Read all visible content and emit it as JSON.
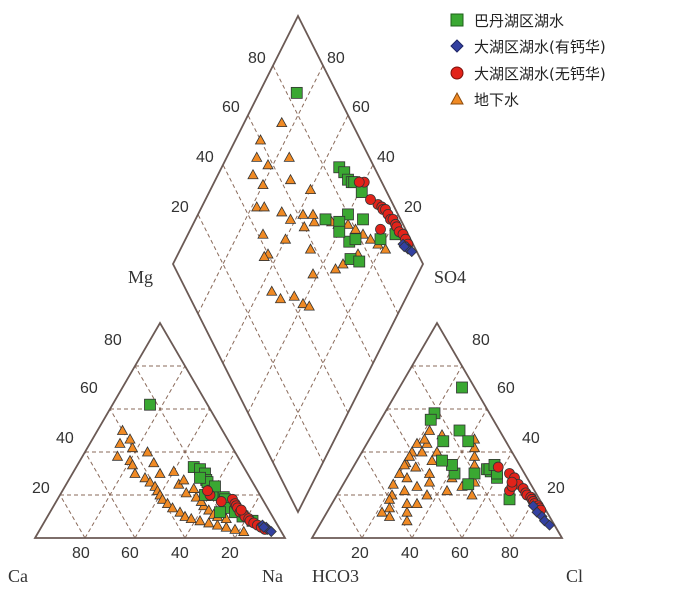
{
  "chart_data": {
    "type": "scatter",
    "title": "",
    "diagram": "Piper trilinear diagram",
    "grid": true,
    "legend_position": "top-right",
    "axis_labels": {
      "ca": "Ca",
      "mg": "Mg",
      "na": "Na",
      "hco3": "HCO3",
      "so4": "SO4",
      "cl": "Cl"
    },
    "ticks": {
      "cation_mg": [
        "80",
        "60",
        "40",
        "20"
      ],
      "cation_bottom": [
        "80",
        "60",
        "40",
        "20"
      ],
      "anion_bottom": [
        "20",
        "40",
        "60",
        "80"
      ],
      "anion_so4": [
        "80",
        "60",
        "40",
        "20"
      ],
      "diamond_left": [
        "80",
        "60",
        "40",
        "20"
      ],
      "diamond_right": [
        "80",
        "60",
        "40",
        "20"
      ]
    },
    "series": [
      {
        "name": "巴丹湖区湖水",
        "marker": "square",
        "color": "#3aa832",
        "points": [
          {
            "mg": 62,
            "na": 15,
            "hco3": 16,
            "so4": 50
          },
          {
            "mg": 33,
            "na": 47,
            "hco3": 14,
            "so4": 32
          },
          {
            "mg": 32,
            "na": 50,
            "hco3": 13,
            "so4": 31
          },
          {
            "mg": 30,
            "na": 53,
            "hco3": 13,
            "so4": 32
          },
          {
            "mg": 27,
            "na": 55,
            "hco3": 12,
            "so4": 28
          },
          {
            "mg": 26,
            "na": 56,
            "hco3": 11,
            "so4": 30
          },
          {
            "mg": 22,
            "na": 60,
            "hco3": 20,
            "so4": 30
          },
          {
            "mg": 20,
            "na": 61,
            "hco3": 10,
            "so4": 34
          },
          {
            "mg": 19,
            "na": 66,
            "hco3": 25,
            "so4": 45
          },
          {
            "mg": 18,
            "na": 67,
            "hco3": 15,
            "so4": 45
          },
          {
            "mg": 14,
            "na": 70,
            "hco3": 28,
            "so4": 30
          },
          {
            "mg": 12,
            "na": 74,
            "hco3": 25,
            "so4": 25
          },
          {
            "mg": 10,
            "na": 78,
            "hco3": 12,
            "so4": 18
          },
          {
            "mg": 8,
            "na": 83,
            "hco3": 5,
            "so4": 70
          },
          {
            "mg": 12,
            "na": 68,
            "hco3": 22,
            "so4": 58
          },
          {
            "mg": 20,
            "na": 58,
            "hco3": 25,
            "so4": 55
          },
          {
            "mg": 24,
            "na": 60,
            "hco3": 27,
            "so4": 34
          },
          {
            "mg": 28,
            "na": 52,
            "hco3": 30,
            "so4": 36
          }
        ]
      },
      {
        "name": "大湖区湖水(有钙华)",
        "marker": "diamond",
        "color": "#3340a0",
        "points": [
          {
            "mg": 6,
            "na": 88,
            "hco3": 4,
            "so4": 12
          },
          {
            "mg": 5,
            "na": 90,
            "hco3": 3,
            "so4": 10
          },
          {
            "mg": 4,
            "na": 91,
            "hco3": 3,
            "so4": 8
          },
          {
            "mg": 3,
            "na": 93,
            "hco3": 2,
            "so4": 6
          },
          {
            "mg": 5,
            "na": 89,
            "hco3": 4,
            "so4": 15
          }
        ]
      },
      {
        "name": "大湖区湖水(无钙华)",
        "marker": "circle",
        "color": "#e2231a",
        "points": [
          {
            "mg": 18,
            "na": 70,
            "hco3": 6,
            "so4": 30
          },
          {
            "mg": 16,
            "na": 72,
            "hco3": 5,
            "so4": 28
          },
          {
            "mg": 15,
            "na": 73,
            "hco3": 5,
            "so4": 25
          },
          {
            "mg": 14,
            "na": 74,
            "hco3": 4,
            "so4": 23
          },
          {
            "mg": 12,
            "na": 76,
            "hco3": 4,
            "so4": 21
          },
          {
            "mg": 11,
            "na": 78,
            "hco3": 4,
            "so4": 20
          },
          {
            "mg": 10,
            "na": 79,
            "hco3": 3,
            "so4": 19
          },
          {
            "mg": 9,
            "na": 81,
            "hco3": 3,
            "so4": 18
          },
          {
            "mg": 8,
            "na": 82,
            "hco3": 3,
            "so4": 17
          },
          {
            "mg": 7,
            "na": 84,
            "hco3": 3,
            "so4": 16
          },
          {
            "mg": 6,
            "na": 86,
            "hco3": 2,
            "so4": 15
          },
          {
            "mg": 5,
            "na": 88,
            "hco3": 2,
            "so4": 14
          },
          {
            "mg": 4,
            "na": 90,
            "hco3": 2,
            "so4": 13
          },
          {
            "mg": 13,
            "na": 76,
            "hco3": 10,
            "so4": 22
          },
          {
            "mg": 17,
            "na": 66,
            "hco3": 8,
            "so4": 24
          },
          {
            "mg": 20,
            "na": 60,
            "hco3": 7,
            "so4": 26
          },
          {
            "mg": 22,
            "na": 58,
            "hco3": 9,
            "so4": 33
          }
        ]
      },
      {
        "name": "地下水",
        "marker": "triangle",
        "color": "#f08a24",
        "points": [
          {
            "mg": 50,
            "na": 10,
            "hco3": 40,
            "so4": 40
          },
          {
            "mg": 44,
            "na": 12,
            "hco3": 45,
            "so4": 35
          },
          {
            "mg": 42,
            "na": 18,
            "hco3": 42,
            "so4": 33
          },
          {
            "mg": 38,
            "na": 14,
            "hco3": 50,
            "so4": 30
          },
          {
            "mg": 36,
            "na": 20,
            "hco3": 48,
            "so4": 28
          },
          {
            "mg": 34,
            "na": 22,
            "hco3": 55,
            "so4": 25
          },
          {
            "mg": 30,
            "na": 25,
            "hco3": 52,
            "so4": 22
          },
          {
            "mg": 28,
            "na": 30,
            "hco3": 58,
            "so4": 20
          },
          {
            "mg": 26,
            "na": 33,
            "hco3": 46,
            "so4": 24
          },
          {
            "mg": 24,
            "na": 36,
            "hco3": 60,
            "so4": 18
          },
          {
            "mg": 22,
            "na": 38,
            "hco3": 44,
            "so4": 20
          },
          {
            "mg": 20,
            "na": 40,
            "hco3": 50,
            "so4": 16
          },
          {
            "mg": 18,
            "na": 42,
            "hco3": 38,
            "so4": 30
          },
          {
            "mg": 16,
            "na": 45,
            "hco3": 40,
            "so4": 26
          },
          {
            "mg": 14,
            "na": 48,
            "hco3": 35,
            "so4": 22
          },
          {
            "mg": 12,
            "na": 52,
            "hco3": 30,
            "so4": 28
          },
          {
            "mg": 10,
            "na": 55,
            "hco3": 28,
            "so4": 24
          },
          {
            "mg": 9,
            "na": 58,
            "hco3": 26,
            "so4": 20
          },
          {
            "mg": 8,
            "na": 62,
            "hco3": 22,
            "so4": 26
          },
          {
            "mg": 7,
            "na": 66,
            "hco3": 20,
            "so4": 30
          },
          {
            "mg": 6,
            "na": 70,
            "hco3": 18,
            "so4": 34
          },
          {
            "mg": 5,
            "na": 74,
            "hco3": 16,
            "so4": 38
          },
          {
            "mg": 4,
            "na": 78,
            "hco3": 14,
            "so4": 42
          },
          {
            "mg": 3,
            "na": 82,
            "hco3": 12,
            "so4": 46
          },
          {
            "mg": 30,
            "na": 35,
            "hco3": 62,
            "so4": 14
          },
          {
            "mg": 25,
            "na": 45,
            "hco3": 66,
            "so4": 12
          },
          {
            "mg": 21,
            "na": 50,
            "hco3": 64,
            "so4": 10
          },
          {
            "mg": 19,
            "na": 55,
            "hco3": 58,
            "so4": 8
          },
          {
            "mg": 15,
            "na": 60,
            "hco3": 56,
            "so4": 12
          },
          {
            "mg": 13,
            "na": 63,
            "hco3": 54,
            "so4": 16
          },
          {
            "mg": 11,
            "na": 66,
            "hco3": 36,
            "so4": 40
          },
          {
            "mg": 10,
            "na": 68,
            "hco3": 32,
            "so4": 44
          },
          {
            "mg": 9,
            "na": 72,
            "hco3": 24,
            "so4": 48
          },
          {
            "mg": 17,
            "na": 58,
            "hco3": 46,
            "so4": 34
          },
          {
            "mg": 23,
            "na": 52,
            "hco3": 42,
            "so4": 38
          },
          {
            "mg": 27,
            "na": 46,
            "hco3": 34,
            "so4": 36
          },
          {
            "mg": 31,
            "na": 40,
            "hco3": 30,
            "so4": 40
          },
          {
            "mg": 35,
            "na": 30,
            "hco3": 36,
            "so4": 44
          },
          {
            "mg": 40,
            "na": 25,
            "hco3": 32,
            "so4": 46
          },
          {
            "mg": 46,
            "na": 15,
            "hco3": 28,
            "so4": 50
          }
        ]
      }
    ]
  }
}
